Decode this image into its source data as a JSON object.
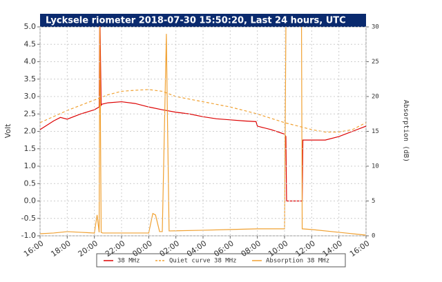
{
  "chart_data": {
    "type": "line",
    "title": "Lycksele riometer 2018-07-30 15:50:20, Last 24 hours, UTC",
    "ylabel": "Volt",
    "y2label": "Absorption (dB)",
    "xlim": [
      0,
      24
    ],
    "xticks": [
      {
        "value": 0,
        "label": "16:00"
      },
      {
        "value": 2,
        "label": "18:00"
      },
      {
        "value": 4,
        "label": "20:00"
      },
      {
        "value": 6,
        "label": "22:00"
      },
      {
        "value": 8,
        "label": "00:00"
      },
      {
        "value": 10,
        "label": "02:00"
      },
      {
        "value": 12,
        "label": "04:00"
      },
      {
        "value": 14,
        "label": "06:00"
      },
      {
        "value": 16,
        "label": "08:00"
      },
      {
        "value": 18,
        "label": "10:00"
      },
      {
        "value": 20,
        "label": "12:00"
      },
      {
        "value": 22,
        "label": "14:00"
      },
      {
        "value": 24,
        "label": "16:00"
      }
    ],
    "ylim": [
      -1,
      5
    ],
    "yticks": [
      {
        "value": -1,
        "label": "-1.0"
      },
      {
        "value": -0.5,
        "label": "-0.5"
      },
      {
        "value": 0,
        "label": "0.0"
      },
      {
        "value": 0.5,
        "label": "0.5"
      },
      {
        "value": 1,
        "label": "1.0"
      },
      {
        "value": 1.5,
        "label": "1.5"
      },
      {
        "value": 2,
        "label": "2.0"
      },
      {
        "value": 2.5,
        "label": "2.5"
      },
      {
        "value": 3,
        "label": "3.0"
      },
      {
        "value": 3.5,
        "label": "3.5"
      },
      {
        "value": 4,
        "label": "4.0"
      },
      {
        "value": 4.5,
        "label": "4.5"
      },
      {
        "value": 5,
        "label": "5.0"
      }
    ],
    "y2lim": [
      0,
      30
    ],
    "y2ticks": [
      0,
      5,
      10,
      15,
      20,
      25,
      30
    ],
    "grid": true,
    "series": [
      {
        "name": "38 MHz",
        "color": "#dd0000",
        "dashed": false,
        "x": [
          0,
          1,
          1.5,
          2,
          3,
          4,
          4.35,
          4.4,
          4.5,
          4.55,
          5,
          6,
          7,
          8,
          9,
          10,
          11,
          12,
          13,
          14,
          15,
          15.9,
          16,
          17,
          18,
          18.1,
          18.15,
          18.6,
          19.3,
          19.35,
          20,
          21,
          22,
          23,
          24
        ],
        "values": [
          2.05,
          2.3,
          2.4,
          2.35,
          2.5,
          2.62,
          2.7,
          5.5,
          2.75,
          2.78,
          2.82,
          2.85,
          2.8,
          2.7,
          2.62,
          2.55,
          2.5,
          2.42,
          2.36,
          2.33,
          2.3,
          2.28,
          2.15,
          2.05,
          1.92,
          1.85,
          0,
          0,
          0,
          1.75,
          1.75,
          1.75,
          1.85,
          2.0,
          2.15
        ]
      },
      {
        "name": "Quiet curve 38 MHz",
        "color": "#f0a030",
        "dashed": true,
        "x": [
          0,
          2,
          4,
          5,
          6,
          7,
          8,
          9,
          10,
          12,
          14,
          16,
          18,
          20,
          21,
          22,
          23,
          24
        ],
        "values": [
          2.25,
          2.6,
          2.9,
          3.05,
          3.15,
          3.18,
          3.2,
          3.15,
          3.0,
          2.85,
          2.7,
          2.5,
          2.25,
          2.05,
          1.98,
          1.98,
          2.05,
          2.25
        ]
      },
      {
        "name": "Absorption 38 MHz",
        "color": "#f0a030",
        "dashed": false,
        "axis": "y2",
        "x": [
          0,
          1,
          2,
          3,
          4,
          4.2,
          4.35,
          4.4,
          4.5,
          4.6,
          8,
          8.3,
          8.5,
          8.8,
          9.0,
          9.3,
          9.35,
          9.5,
          12,
          14,
          16,
          18,
          18.1,
          18.15,
          19.25,
          19.3,
          20,
          22,
          24
        ],
        "values": [
          0.3,
          0.4,
          0.6,
          0.5,
          0.4,
          3,
          0.5,
          30,
          0.5,
          0.4,
          0.4,
          3.2,
          3.0,
          0.6,
          0.6,
          29,
          21,
          0.7,
          0.8,
          0.9,
          1.0,
          1.0,
          30,
          null,
          30,
          1.0,
          0.9,
          0.5,
          0.1
        ]
      }
    ]
  }
}
